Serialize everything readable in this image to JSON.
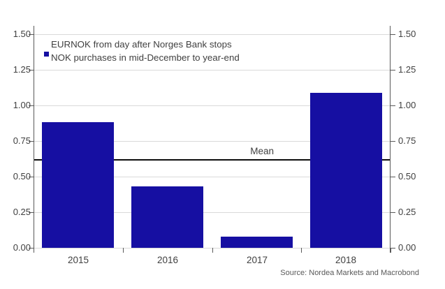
{
  "chart_data": {
    "type": "bar",
    "title": "",
    "legend": [
      "EURNOK from day after Norges Bank stops",
      "NOK purchases in mid-December to year-end"
    ],
    "categories": [
      "2015",
      "2016",
      "2017",
      "2018"
    ],
    "values": [
      0.88,
      0.43,
      0.08,
      1.09
    ],
    "mean": 0.62,
    "mean_label": "Mean",
    "ylim": [
      0,
      1.5
    ],
    "yticks": [
      {
        "value": 0,
        "label": "0.00"
      },
      {
        "value": 0.25,
        "label": "0.25"
      },
      {
        "value": 0.5,
        "label": "0.50"
      },
      {
        "value": 0.75,
        "label": "0.75"
      },
      {
        "value": 1,
        "label": "1.00"
      },
      {
        "value": 1.25,
        "label": "1.25"
      },
      {
        "value": 1.5,
        "label": "1.50"
      }
    ],
    "y_axis_sides": [
      "left",
      "right"
    ],
    "grid": true,
    "legend_position": "top-left-inside",
    "source": "Source: Nordea Markets and Macrobond",
    "colors": {
      "bar": "#160FA2",
      "axis": "#595959",
      "grid": "#D9D9D9",
      "text": "#404040",
      "mean_line": "#0D0D0D",
      "source_text": "#595959"
    }
  }
}
